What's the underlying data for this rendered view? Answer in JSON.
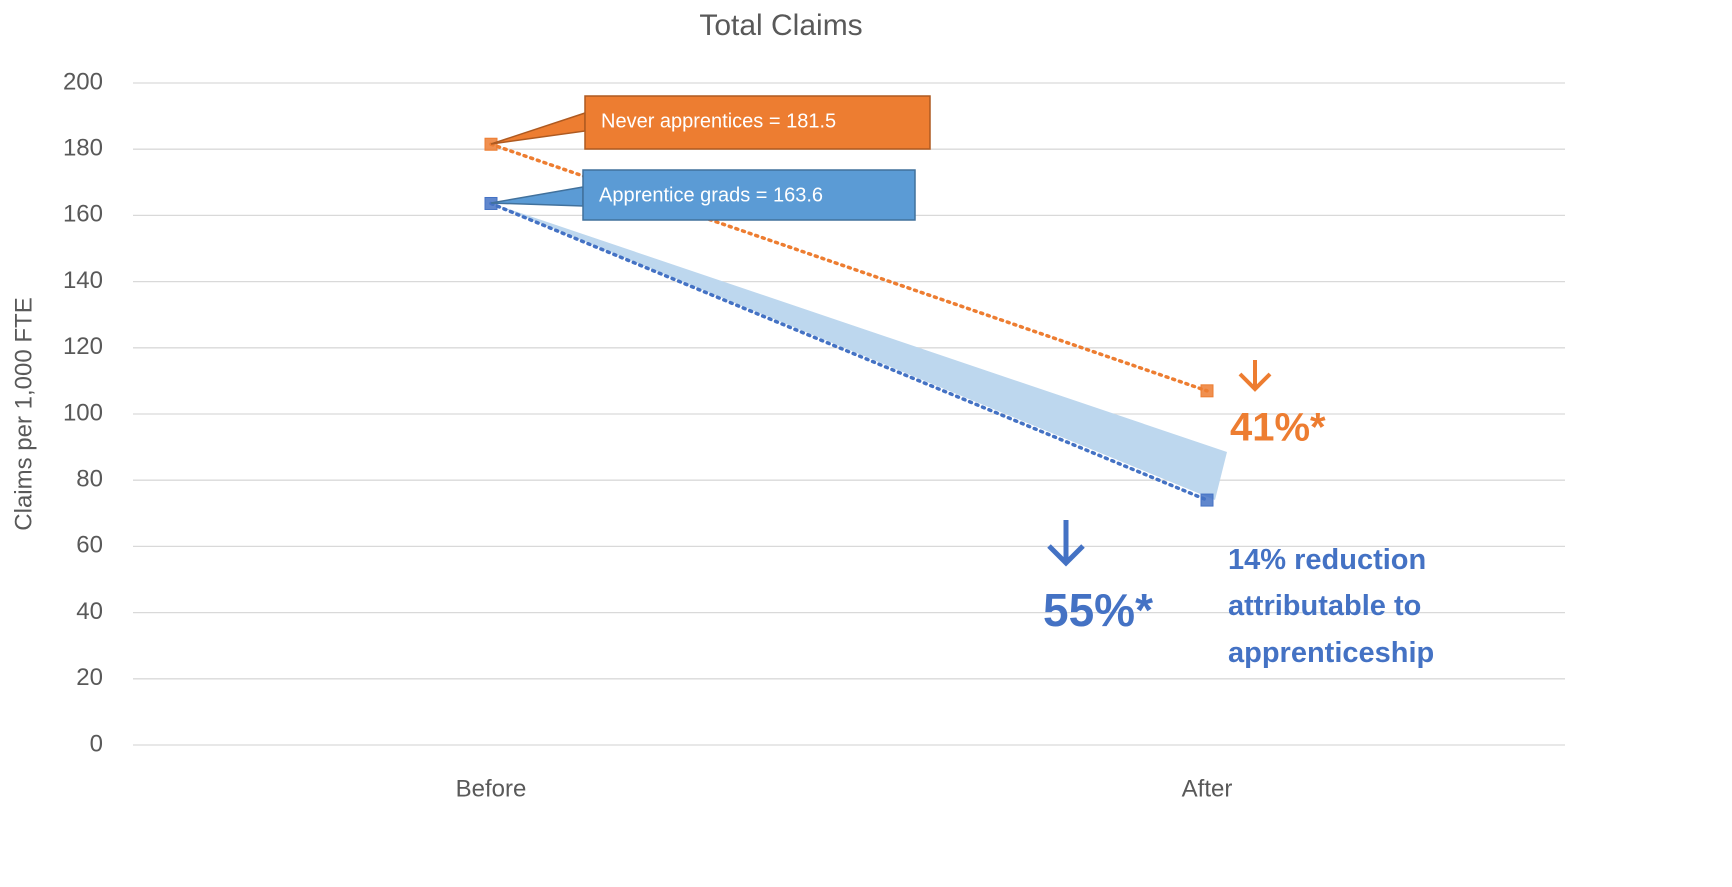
{
  "chart_data": {
    "type": "line",
    "title": "Total Claims",
    "y_label": "Claims per 1,000 FTE",
    "categories": [
      "Before",
      "After"
    ],
    "series": [
      {
        "name": "Never apprentices",
        "color": "#ED7D31",
        "values": [
          181.5,
          107
        ]
      },
      {
        "name": "Apprentice grads",
        "color": "#4472C4",
        "values": [
          163.6,
          74
        ]
      }
    ],
    "ylim": [
      0,
      200
    ],
    "yticks": [
      0,
      20,
      40,
      60,
      80,
      100,
      120,
      140,
      160,
      180,
      200
    ],
    "grid": true,
    "callouts": [
      "Never apprentices = 181.5",
      "Apprentice grads = 163.6"
    ],
    "annotations": {
      "orange_drop": "41%*",
      "blue_drop": "55%*",
      "reduction": [
        "14% reduction",
        "attributable to",
        "apprenticeship"
      ]
    }
  }
}
